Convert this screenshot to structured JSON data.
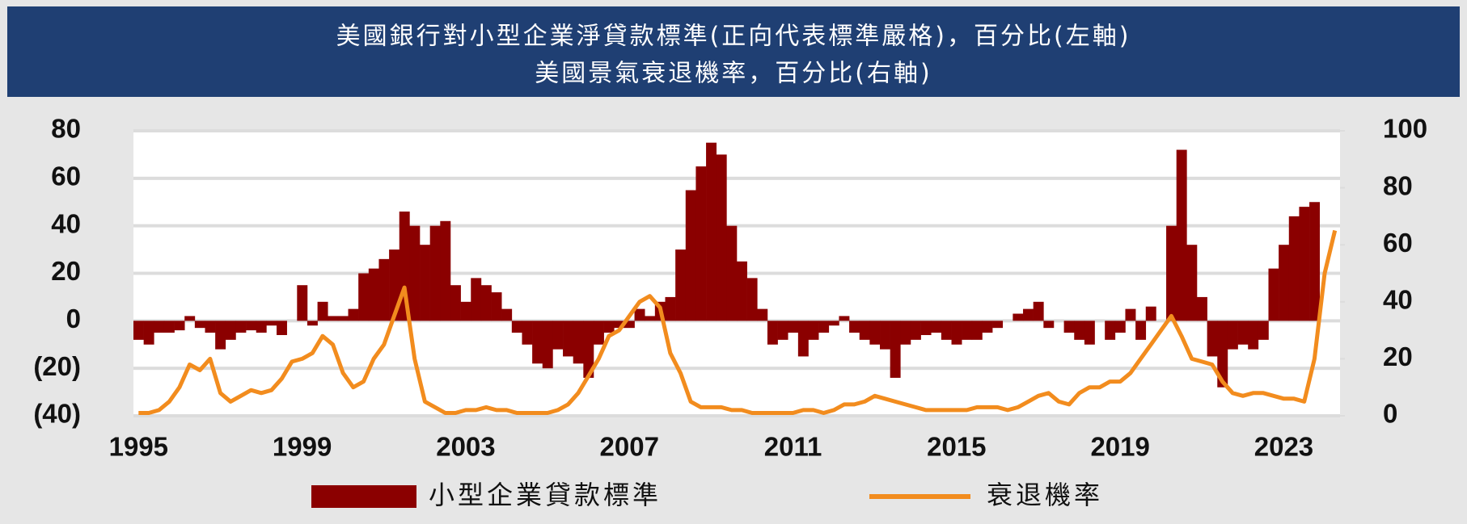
{
  "chart_data": {
    "type": "bar-line",
    "title": "美國銀行對小型企業淨貸款標準(正向代表標準嚴格)，百分比(左軸)",
    "subtitle": "美國景氣衰退機率，百分比(右軸)",
    "categories": [
      "1995",
      null,
      null,
      null,
      null,
      null,
      null,
      null,
      null,
      null,
      null,
      null,
      null,
      null,
      null,
      null,
      "1999",
      null,
      null,
      null,
      null,
      null,
      null,
      null,
      null,
      null,
      null,
      null,
      null,
      null,
      null,
      null,
      "2003",
      null,
      null,
      null,
      null,
      null,
      null,
      null,
      null,
      null,
      null,
      null,
      null,
      null,
      null,
      null,
      "2007",
      null,
      null,
      null,
      null,
      null,
      null,
      null,
      null,
      null,
      null,
      null,
      null,
      null,
      null,
      null,
      "2011",
      null,
      null,
      null,
      null,
      null,
      null,
      null,
      null,
      null,
      null,
      null,
      null,
      null,
      null,
      null,
      "2015",
      null,
      null,
      null,
      null,
      null,
      null,
      null,
      null,
      null,
      null,
      null,
      null,
      null,
      null,
      null,
      "2019",
      null,
      null,
      null,
      null,
      null,
      null,
      null,
      null,
      null,
      null,
      null,
      null,
      null,
      null,
      null,
      "2023",
      null,
      null,
      null,
      null,
      null
    ],
    "series": [
      {
        "name": "小型企業貸款標準",
        "color": "#8b0000",
        "type": "bar",
        "values": [
          -8,
          -10,
          -5,
          -5,
          -4,
          2,
          -3,
          -5,
          -12,
          -8,
          -5,
          -4,
          -5,
          -2,
          -6,
          0,
          15,
          -2,
          8,
          2,
          2,
          5,
          20,
          22,
          26,
          30,
          46,
          40,
          32,
          40,
          42,
          15,
          8,
          18,
          15,
          12,
          5,
          -5,
          -10,
          -18,
          -20,
          -12,
          -15,
          -18,
          -24,
          -10,
          -5,
          -3,
          -3,
          5,
          2,
          8,
          10,
          30,
          55,
          65,
          75,
          70,
          40,
          25,
          18,
          5,
          -10,
          -8,
          -5,
          -15,
          -8,
          -5,
          -2,
          2,
          -5,
          -8,
          -10,
          -12,
          -24,
          -10,
          -8,
          -6,
          -5,
          -8,
          -10,
          -8,
          -8,
          -5,
          -3,
          0,
          3,
          5,
          8,
          -3,
          0,
          -5,
          -8,
          -10,
          0,
          -8,
          -5,
          5,
          -8,
          6,
          0,
          40,
          72,
          32,
          10,
          -15,
          -28,
          -12,
          -10,
          -12,
          -8,
          22,
          32,
          44,
          48,
          50,
          null,
          null
        ]
      },
      {
        "name": "衰退機率",
        "color": "#f28c1e",
        "type": "line",
        "axis": "y2",
        "values": [
          1,
          1,
          2,
          5,
          10,
          18,
          16,
          20,
          8,
          5,
          7,
          9,
          8,
          9,
          13,
          19,
          20,
          22,
          28,
          25,
          15,
          10,
          12,
          20,
          25,
          35,
          45,
          20,
          5,
          3,
          1,
          1,
          2,
          2,
          3,
          2,
          2,
          1,
          1,
          1,
          1,
          2,
          4,
          8,
          14,
          20,
          28,
          30,
          35,
          40,
          42,
          38,
          22,
          15,
          5,
          3,
          3,
          3,
          2,
          2,
          1,
          1,
          1,
          1,
          1,
          2,
          2,
          1,
          2,
          4,
          4,
          5,
          7,
          6,
          5,
          4,
          3,
          2,
          2,
          2,
          2,
          2,
          3,
          3,
          3,
          2,
          3,
          5,
          7,
          8,
          5,
          4,
          8,
          10,
          10,
          12,
          12,
          15,
          20,
          25,
          30,
          35,
          28,
          20,
          19,
          18,
          12,
          8,
          7,
          8,
          8,
          7,
          6,
          6,
          5,
          20,
          50,
          65
        ]
      }
    ],
    "ylim": [
      -40,
      80
    ],
    "yticks": [
      {
        "value": -40,
        "label": "(40)"
      },
      {
        "value": -20,
        "label": "(20)"
      },
      0,
      20,
      40,
      60,
      80
    ],
    "y2lim": [
      0,
      100
    ],
    "y2ticks": [
      0,
      20,
      40,
      60,
      80,
      100
    ],
    "grid": true
  }
}
